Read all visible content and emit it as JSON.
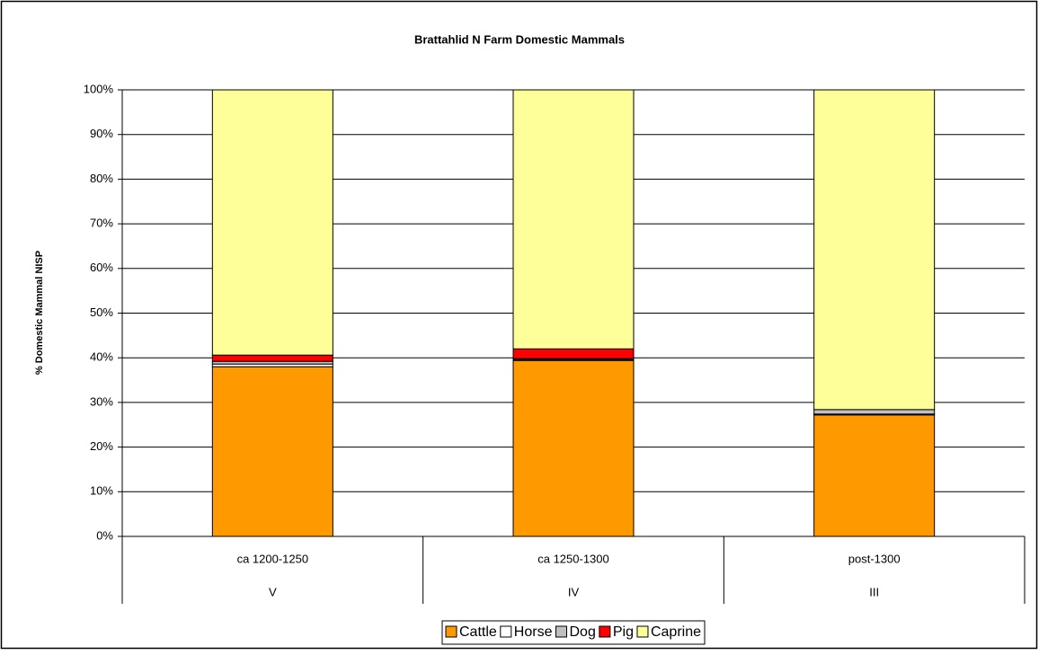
{
  "chart_data": {
    "type": "stacked_bar",
    "title": "Brattahlid N Farm Domestic Mammals",
    "y_label": "% Domestic Mammal NISP",
    "categories": [
      "ca 1200-1250",
      "ca 1250-1300",
      "post-1300"
    ],
    "categories2": [
      "V",
      "IV",
      "III"
    ],
    "series": [
      {
        "name": "Cattle",
        "color": "#ff9900",
        "values": [
          38.0,
          39.4,
          27.2
        ]
      },
      {
        "name": "Horse",
        "color": "#ffffff",
        "values": [
          0.6,
          0.2,
          0.2
        ]
      },
      {
        "name": "Dog",
        "color": "#c0c0c0",
        "values": [
          0.6,
          0.2,
          1.0
        ]
      },
      {
        "name": "Pig",
        "color": "#ff0000",
        "values": [
          1.4,
          2.2,
          0
        ]
      },
      {
        "name": "Caprine",
        "color": "#ffff99",
        "values": [
          59.4,
          58.0,
          71.6
        ]
      }
    ],
    "ylim": [
      0,
      100
    ],
    "yticks": [
      {
        "value": 0,
        "label": "0%"
      },
      {
        "value": 10,
        "label": "10%"
      },
      {
        "value": 20,
        "label": "20%"
      },
      {
        "value": 30,
        "label": "30%"
      },
      {
        "value": 40,
        "label": "40%"
      },
      {
        "value": 50,
        "label": "50%"
      },
      {
        "value": 60,
        "label": "60%"
      },
      {
        "value": 70,
        "label": "70%"
      },
      {
        "value": 80,
        "label": "80%"
      },
      {
        "value": 90,
        "label": "90%"
      },
      {
        "value": 100,
        "label": "100%"
      }
    ],
    "grid": true,
    "legend": "bottom"
  }
}
